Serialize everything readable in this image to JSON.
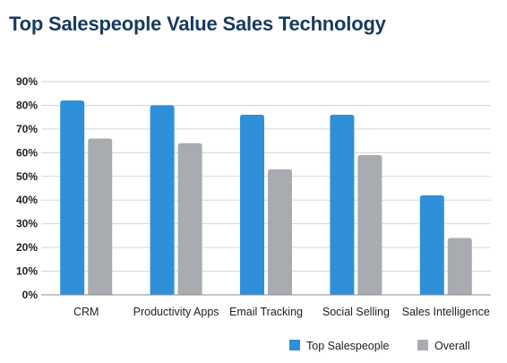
{
  "chart_data": {
    "type": "bar",
    "title": "Top Salespeople Value Sales Technology",
    "xlabel": "",
    "ylabel": "",
    "categories": [
      "CRM",
      "Productivity Apps",
      "Email Tracking",
      "Social Selling",
      "Sales Intelligence"
    ],
    "series": [
      {
        "name": "Top Salespeople",
        "color": "#2f8fd8",
        "values": [
          82,
          80,
          76,
          76,
          42
        ]
      },
      {
        "name": "Overall",
        "color": "#a8abaf",
        "values": [
          66,
          64,
          53,
          59,
          24
        ]
      }
    ],
    "ylim": [
      0,
      90
    ],
    "yticks": [
      "0%",
      "10%",
      "20%",
      "30%",
      "40%",
      "50%",
      "60%",
      "70%",
      "80%",
      "90%"
    ],
    "grid": true,
    "legend_position": "bottom-right"
  }
}
